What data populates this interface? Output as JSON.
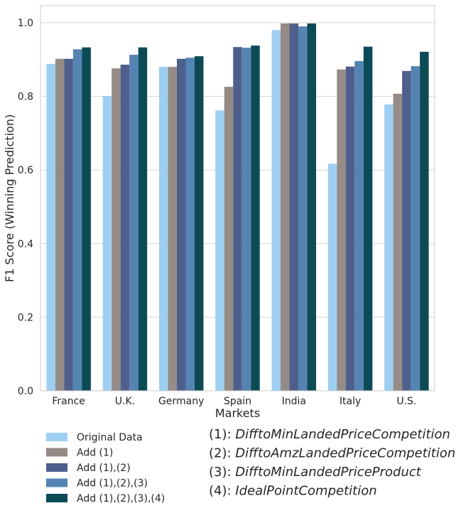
{
  "chart_data": {
    "type": "bar",
    "xlabel": "Markets",
    "ylabel": "F1 Score (Winning Prediction)",
    "ylim": [
      0,
      1.05
    ],
    "yticks": [
      "0.0",
      "0.2",
      "0.4",
      "0.6",
      "0.8",
      "1.0"
    ],
    "grid": "horizontal",
    "legend_position": "bottom-left",
    "categories": [
      "France",
      "U.K.",
      "Germany",
      "Spain",
      "India",
      "Italy",
      "U.S."
    ],
    "series": [
      {
        "name": "Original Data",
        "color": "#9ecff2",
        "values": [
          0.888,
          0.801,
          0.88,
          0.762,
          0.98,
          0.617,
          0.778
        ]
      },
      {
        "name": "Add (1)",
        "color": "#958b87",
        "values": [
          0.902,
          0.876,
          0.88,
          0.826,
          0.998,
          0.873,
          0.807
        ]
      },
      {
        "name": "Add (1),(2)",
        "color": "#4f5f8c",
        "values": [
          0.902,
          0.886,
          0.902,
          0.934,
          0.998,
          0.881,
          0.869
        ]
      },
      {
        "name": "Add (1),(2),(3)",
        "color": "#5384b2",
        "values": [
          0.928,
          0.913,
          0.905,
          0.932,
          0.99,
          0.896,
          0.882
        ]
      },
      {
        "name": "Add (1),(2),(3),(4)",
        "color": "#0c4a56",
        "values": [
          0.933,
          0.933,
          0.909,
          0.938,
          0.998,
          0.935,
          0.921
        ]
      }
    ],
    "notes": [
      {
        "prefix": "(1): ",
        "name": "DifftoMinLandedPriceCompetition"
      },
      {
        "prefix": "(2): ",
        "name": "DifftoAmzLandedPriceCompetition"
      },
      {
        "prefix": "(3): ",
        "name": "DifftoMinLandedPriceProduct"
      },
      {
        "prefix": "(4): ",
        "name": "IdealPointCompetition"
      }
    ]
  }
}
